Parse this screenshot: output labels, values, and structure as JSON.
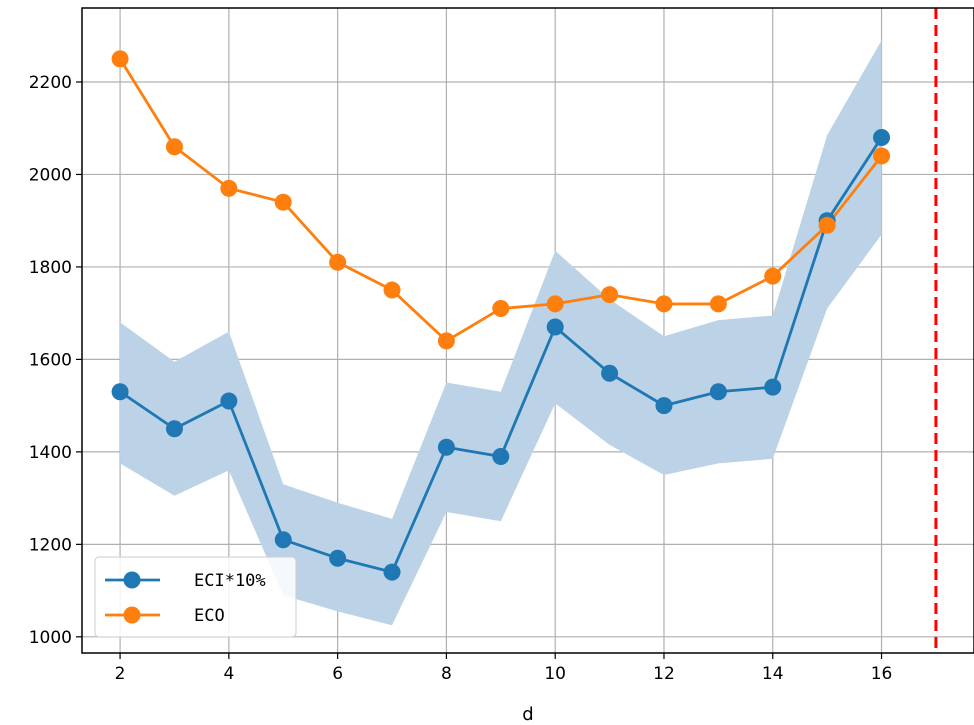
{
  "chart_data": {
    "type": "line",
    "title": "",
    "xlabel": "d",
    "ylabel": "",
    "xlim": [
      1.3,
      17.7
    ],
    "ylim": [
      965,
      2360
    ],
    "xticks": [
      2,
      4,
      6,
      8,
      10,
      12,
      14,
      16
    ],
    "yticks": [
      1000,
      1200,
      1400,
      1600,
      1800,
      2000,
      2200
    ],
    "grid": true,
    "legend_position": "lower-left",
    "x": [
      2,
      3,
      4,
      5,
      6,
      7,
      8,
      9,
      10,
      11,
      12,
      13,
      14,
      15,
      16
    ],
    "series": [
      {
        "name": "ECI*10%",
        "color": "#1f77b4",
        "values": [
          1530,
          1450,
          1510,
          1210,
          1170,
          1140,
          1410,
          1390,
          1670,
          1570,
          1500,
          1530,
          1540,
          1900,
          2080
        ],
        "band_upper": [
          1680,
          1595,
          1660,
          1330,
          1290,
          1255,
          1550,
          1530,
          1835,
          1730,
          1650,
          1685,
          1695,
          2085,
          2290
        ],
        "band_lower": [
          1375,
          1305,
          1360,
          1090,
          1055,
          1025,
          1270,
          1250,
          1505,
          1415,
          1350,
          1375,
          1385,
          1710,
          1870
        ],
        "band_color": "#bcd3e7"
      },
      {
        "name": "ECO",
        "color": "#ff7f0e",
        "values": [
          2250,
          2060,
          1970,
          1940,
          1810,
          1750,
          1640,
          1710,
          1720,
          1740,
          1720,
          1720,
          1780,
          1890,
          2040
        ]
      }
    ],
    "vline": {
      "x": 17,
      "color": "#ff0000",
      "style": "dashed"
    }
  }
}
